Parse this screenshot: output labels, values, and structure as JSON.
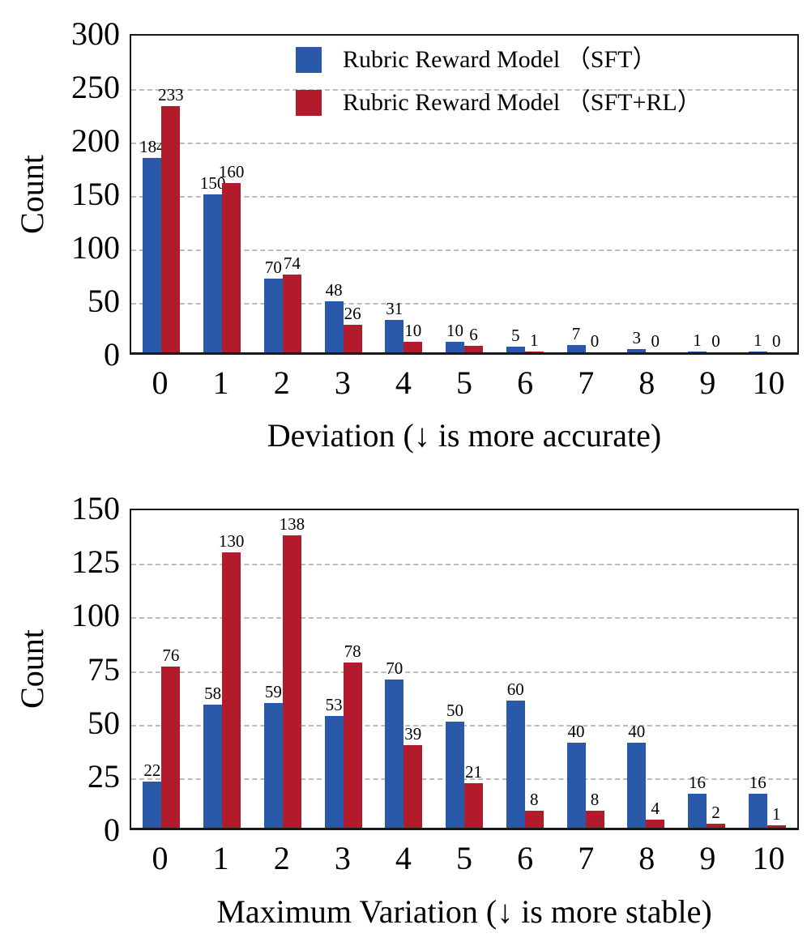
{
  "colors": {
    "sft_blue": "#2A59A9",
    "rl_red": "#B11B2B",
    "gridline_gray": "#BCBCBC",
    "axis_black": "#1A1A1A"
  },
  "chart_data": [
    {
      "type": "bar",
      "title": "",
      "xlabel": "Deviation (↓ is more accurate)",
      "ylabel": "Count",
      "categories": [
        "0",
        "1",
        "2",
        "3",
        "4",
        "5",
        "6",
        "7",
        "8",
        "9",
        "10"
      ],
      "yticks": [
        0,
        50,
        100,
        150,
        200,
        250,
        300
      ],
      "ylim": [
        0,
        300
      ],
      "grid": "horizontal dashed",
      "legend_position": "upper center inside plot",
      "series": [
        {
          "name": "Rubric Reward  Model （SFT）",
          "color": "#2A59A9",
          "values": [
            184,
            150,
            70,
            48,
            31,
            10,
            5,
            7,
            3,
            1,
            1
          ]
        },
        {
          "name": "Rubric Reward  Model （SFT+RL）",
          "color": "#B11B2B",
          "values": [
            233,
            160,
            74,
            26,
            10,
            6,
            1,
            0,
            0,
            0,
            0
          ]
        }
      ]
    },
    {
      "type": "bar",
      "title": "",
      "xlabel": "Maximum Variation (↓ is more stable)",
      "ylabel": "Count",
      "categories": [
        "0",
        "1",
        "2",
        "3",
        "4",
        "5",
        "6",
        "7",
        "8",
        "9",
        "10"
      ],
      "yticks": [
        0,
        25,
        50,
        75,
        100,
        125,
        150
      ],
      "ylim": [
        0,
        150
      ],
      "grid": "horizontal dashed",
      "legend_position": "none",
      "series": [
        {
          "name": "Rubric Reward  Model （SFT）",
          "color": "#2A59A9",
          "values": [
            22,
            58,
            59,
            53,
            70,
            50,
            60,
            40,
            40,
            16,
            16
          ]
        },
        {
          "name": "Rubric Reward  Model （SFT+RL）",
          "color": "#B11B2B",
          "values": [
            76,
            130,
            138,
            78,
            39,
            21,
            8,
            8,
            4,
            2,
            1
          ]
        }
      ]
    }
  ]
}
